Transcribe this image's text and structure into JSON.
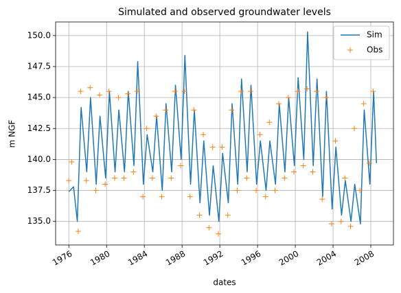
{
  "chart_data": {
    "type": "line",
    "title": "Simulated and observed groundwater levels",
    "x_label": "dates",
    "y_label": "m NGF",
    "xlim": [
      1974.6,
      2010.4
    ],
    "ylim": [
      133.1,
      151.1
    ],
    "xticks": [
      1976,
      1980,
      1984,
      1988,
      1992,
      1996,
      2000,
      2004,
      2008
    ],
    "yticks": [
      {
        "value": 135,
        "label": "135.0"
      },
      137.5,
      {
        "value": 140,
        "label": "140.0"
      },
      142.5,
      {
        "value": 145,
        "label": "145.0"
      },
      147.5,
      {
        "value": 150,
        "label": "150.0"
      }
    ],
    "grid": true,
    "legend": "upper right",
    "series": [
      {
        "name": "Sim",
        "color": "#1f77b4",
        "x": [
          1976.0,
          1976.5,
          1976.9,
          1977.3,
          1977.9,
          1978.3,
          1978.9,
          1979.3,
          1979.9,
          1980.3,
          1980.9,
          1981.3,
          1981.9,
          1982.3,
          1982.9,
          1983.3,
          1983.9,
          1984.3,
          1984.9,
          1985.3,
          1985.9,
          1986.3,
          1986.9,
          1987.3,
          1987.9,
          1988.3,
          1988.9,
          1989.3,
          1989.9,
          1990.3,
          1990.9,
          1991.3,
          1991.9,
          1992.3,
          1992.9,
          1993.3,
          1993.9,
          1994.3,
          1994.9,
          1995.3,
          1995.9,
          1996.3,
          1996.9,
          1997.3,
          1997.9,
          1998.3,
          1998.9,
          1999.3,
          1999.9,
          2000.3,
          2000.9,
          2001.3,
          2001.9,
          2002.3,
          2002.9,
          2003.3,
          2003.9,
          2004.3,
          2004.9,
          2005.3,
          2005.9,
          2006.3,
          2006.9,
          2007.3,
          2007.9,
          2008.3,
          2008.6
        ],
        "values": [
          137.4,
          137.8,
          135,
          144.2,
          139,
          145,
          138,
          143.5,
          138.5,
          145.5,
          139,
          144,
          139,
          145.5,
          139.5,
          147.9,
          138,
          142,
          139,
          143.5,
          137.5,
          144.5,
          139,
          146,
          140,
          148.4,
          138,
          144,
          136.5,
          141.5,
          135.5,
          139.5,
          135,
          140.5,
          136.5,
          144.5,
          138,
          146.5,
          139,
          146,
          138,
          141.5,
          137.5,
          141.5,
          138,
          144.5,
          139,
          145,
          139.5,
          146.6,
          140,
          150.3,
          139.5,
          146.5,
          137,
          145.5,
          136,
          141,
          135.5,
          138.3,
          135,
          138,
          134.8,
          144,
          138,
          145.5,
          139.7
        ]
      },
      {
        "name": "Obs",
        "color": "#ff7f0e",
        "marker": "+",
        "x": [
          1976.0,
          1976.3,
          1977.0,
          1977.25,
          1977.85,
          1978.25,
          1978.85,
          1979.25,
          1979.85,
          1980.25,
          1980.85,
          1981.25,
          1981.85,
          1982.25,
          1982.85,
          1983.25,
          1983.85,
          1984.25,
          1984.85,
          1985.25,
          1985.85,
          1986.25,
          1986.85,
          1987.25,
          1987.85,
          1988.25,
          1988.85,
          1989.25,
          1989.85,
          1990.25,
          1990.85,
          1991.25,
          1991.85,
          1992.25,
          1992.85,
          1993.25,
          1993.85,
          1994.25,
          1994.85,
          1995.25,
          1995.85,
          1996.25,
          1996.85,
          1997.25,
          1997.85,
          1998.25,
          1998.85,
          1999.25,
          1999.85,
          2000.25,
          2000.85,
          2001.25,
          2001.85,
          2002.25,
          2002.85,
          2003.25,
          2003.85,
          2004.25,
          2004.85,
          2005.25,
          2005.85,
          2006.25,
          2006.85,
          2007.25,
          2007.85,
          2008.25
        ],
        "values": [
          138.3,
          139.8,
          134.2,
          145.5,
          138.3,
          145.8,
          137.5,
          145.2,
          138,
          145.5,
          138.5,
          145,
          138.5,
          145.3,
          139,
          145.5,
          137,
          142.5,
          138.5,
          143.5,
          137,
          144,
          138.5,
          145.5,
          139.5,
          145.5,
          137,
          144,
          135.5,
          142,
          134.5,
          141,
          134,
          141,
          135.5,
          144,
          137.5,
          145.5,
          138.5,
          145.5,
          137.5,
          142,
          137,
          143,
          137.5,
          144.5,
          138.5,
          145,
          139,
          145.5,
          139.5,
          145.7,
          139,
          145.5,
          136.8,
          145,
          134.8,
          141.5,
          135,
          138.5,
          134.6,
          142.5,
          137.5,
          144.5,
          139.7,
          145.5
        ]
      }
    ]
  }
}
